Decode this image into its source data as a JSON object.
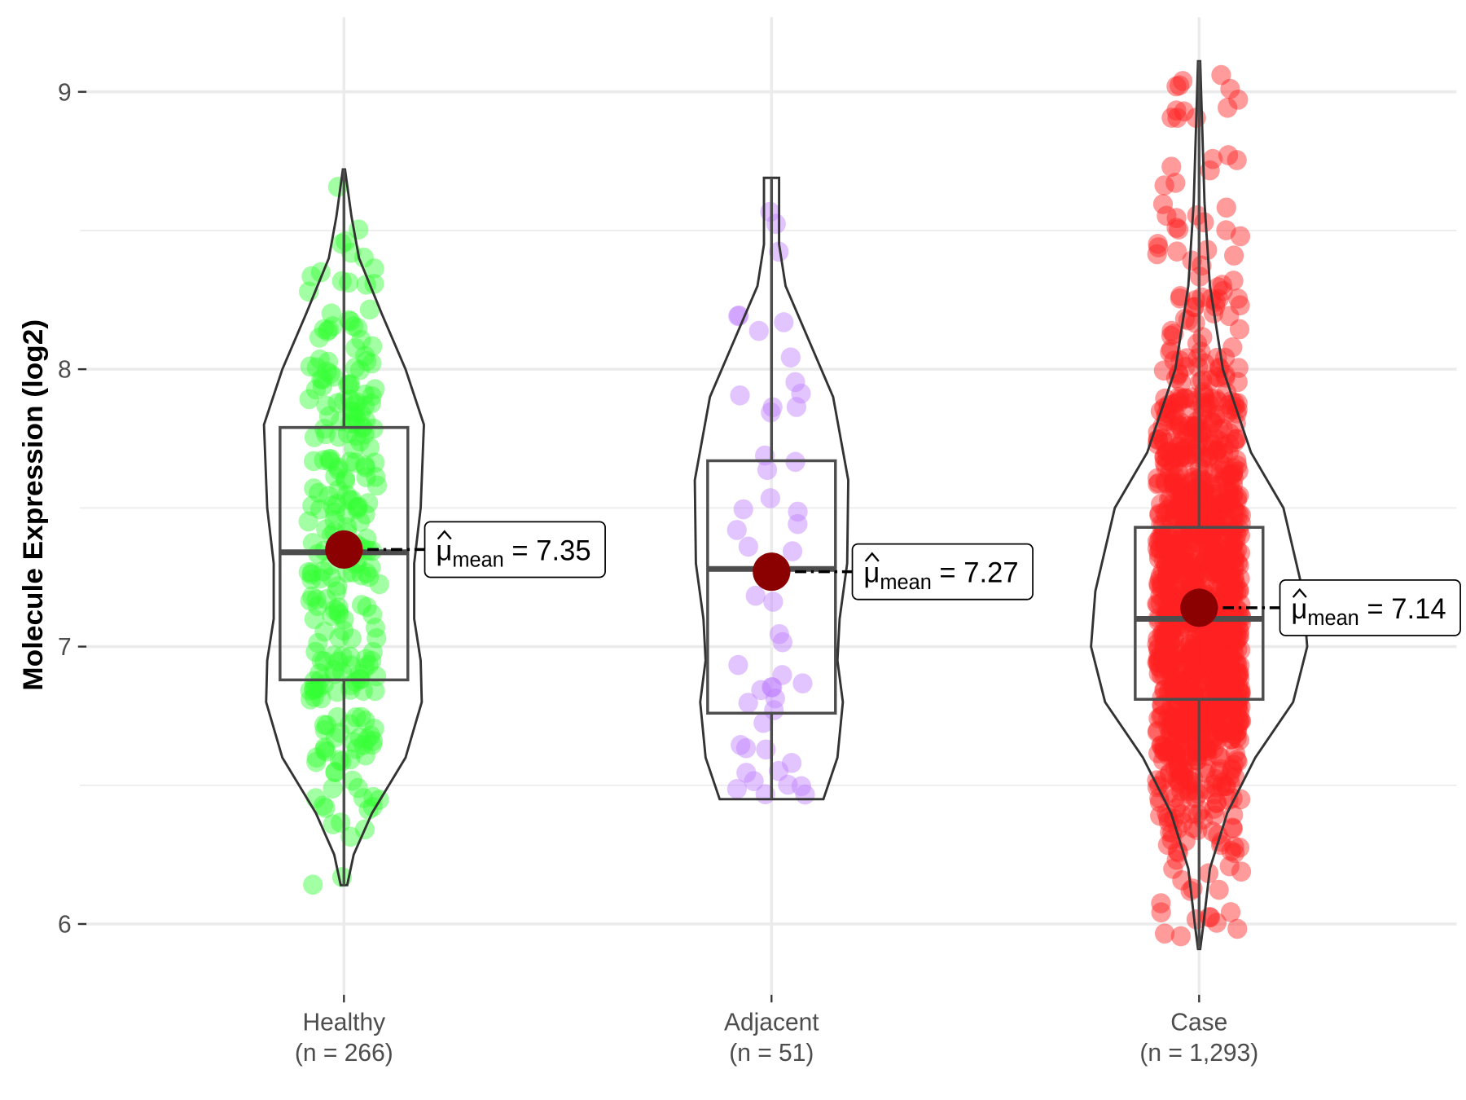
{
  "chart_data": {
    "type": "violin",
    "title": "",
    "xlabel": "",
    "ylabel": "Molecule Expression (log2)",
    "ylim": [
      5.75,
      9.27
    ],
    "yticks": [
      "6",
      "7",
      "8",
      "9"
    ],
    "grid": true,
    "groups": [
      {
        "name": "Healthy",
        "n_label": "(n = 266)",
        "n": 266,
        "color": "#33FF33",
        "box": {
          "min": 6.14,
          "q1": 6.88,
          "median": 7.34,
          "q3": 7.79,
          "max": 8.72
        },
        "mean": 7.35,
        "mean_label": "7.35",
        "density": [
          [
            6.14,
            0.03
          ],
          [
            6.25,
            0.09
          ],
          [
            6.4,
            0.26
          ],
          [
            6.6,
            0.57
          ],
          [
            6.8,
            0.72
          ],
          [
            6.95,
            0.71
          ],
          [
            7.1,
            0.65
          ],
          [
            7.3,
            0.65
          ],
          [
            7.5,
            0.71
          ],
          [
            7.8,
            0.74
          ],
          [
            8.0,
            0.57
          ],
          [
            8.2,
            0.35
          ],
          [
            8.4,
            0.14
          ],
          [
            8.55,
            0.07
          ],
          [
            8.72,
            0.01
          ]
        ]
      },
      {
        "name": "Adjacent",
        "n_label": "(n = 51)",
        "n": 51,
        "color": "#BF7FFF",
        "box": {
          "min": 6.45,
          "q1": 6.76,
          "median": 7.28,
          "q3": 7.67,
          "max": 8.69
        },
        "mean": 7.27,
        "mean_label": "7.27",
        "density": [
          [
            6.45,
            0.48
          ],
          [
            6.6,
            0.61
          ],
          [
            6.8,
            0.66
          ],
          [
            6.95,
            0.61
          ],
          [
            7.1,
            0.63
          ],
          [
            7.3,
            0.7
          ],
          [
            7.6,
            0.71
          ],
          [
            7.9,
            0.57
          ],
          [
            8.1,
            0.35
          ],
          [
            8.3,
            0.13
          ],
          [
            8.45,
            0.07
          ],
          [
            8.69,
            0.07
          ]
        ]
      },
      {
        "name": "Case",
        "n_label": "(n = 1,293)",
        "n": 1293,
        "color": "#FF2222",
        "box": {
          "min": 5.91,
          "q1": 6.81,
          "median": 7.1,
          "q3": 7.43,
          "max": 9.11
        },
        "mean": 7.14,
        "mean_label": "7.14",
        "density": [
          [
            5.91,
            0.01
          ],
          [
            6.0,
            0.04
          ],
          [
            6.2,
            0.1
          ],
          [
            6.4,
            0.26
          ],
          [
            6.6,
            0.52
          ],
          [
            6.8,
            0.87
          ],
          [
            7.0,
            1.0
          ],
          [
            7.2,
            0.96
          ],
          [
            7.5,
            0.78
          ],
          [
            7.7,
            0.48
          ],
          [
            8.0,
            0.22
          ],
          [
            8.3,
            0.1
          ],
          [
            8.6,
            0.05
          ],
          [
            9.11,
            0.01
          ]
        ]
      }
    ],
    "mean_symbol": "μ",
    "mean_subscript": "mean",
    "equals": "="
  }
}
